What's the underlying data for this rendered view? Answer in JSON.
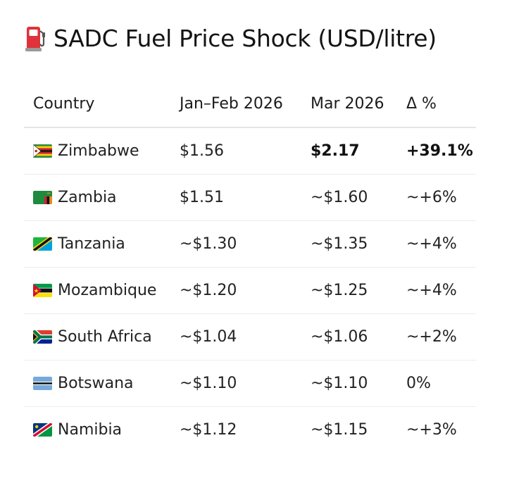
{
  "title": "SADC Fuel Price Shock (USD/litre)",
  "icons": {
    "title": "fuel-pump-icon"
  },
  "chart_data": {
    "type": "table",
    "title": "SADC Fuel Price Shock (USD/litre)",
    "columns": [
      "Country",
      "Jan–Feb 2026",
      "Mar 2026",
      "Δ %"
    ],
    "rows": [
      {
        "country": "Zimbabwe",
        "flag": "zimbabwe-flag-icon",
        "jan_feb": "$1.56",
        "mar": "$2.17",
        "change": "+39.1%",
        "highlight": true
      },
      {
        "country": "Zambia",
        "flag": "zambia-flag-icon",
        "jan_feb": "$1.51",
        "mar": "~$1.60",
        "change": "~+6%"
      },
      {
        "country": "Tanzania",
        "flag": "tanzania-flag-icon",
        "jan_feb": "~$1.30",
        "mar": "~$1.35",
        "change": "~+4%"
      },
      {
        "country": "Mozambique",
        "flag": "mozambique-flag-icon",
        "jan_feb": "~$1.20",
        "mar": "~$1.25",
        "change": "~+4%"
      },
      {
        "country": "South Africa",
        "flag": "south-africa-flag-icon",
        "jan_feb": "~$1.04",
        "mar": "~$1.06",
        "change": "~+2%"
      },
      {
        "country": "Botswana",
        "flag": "botswana-flag-icon",
        "jan_feb": "~$1.10",
        "mar": "~$1.10",
        "change": "0%"
      },
      {
        "country": "Namibia",
        "flag": "namibia-flag-icon",
        "jan_feb": "~$1.12",
        "mar": "~$1.15",
        "change": "~+3%"
      }
    ]
  },
  "colors": {
    "text": "#161616",
    "header_rule": "#e4e4e4",
    "row_rule": "#ededed",
    "pump_red": "#e0323a"
  }
}
